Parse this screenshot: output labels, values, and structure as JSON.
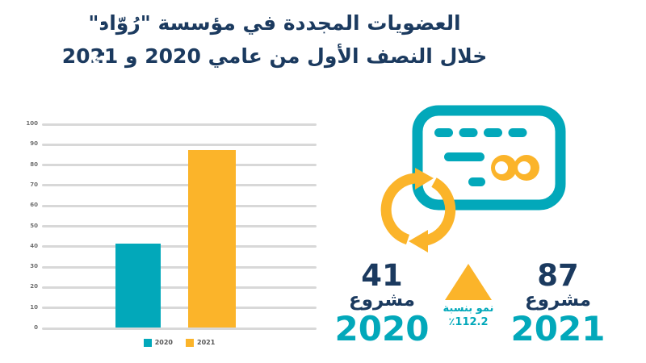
{
  "title": {
    "line1": "العضويات المجددة في مؤسسة \"رُوّاد\"",
    "line2": "خلال النصف الأول من عامي 2020 و 2021",
    "ornament": "ء",
    "color": "#1B3A5F"
  },
  "colors": {
    "teal": "#02A8BA",
    "yellow": "#FBB42A",
    "navy": "#1B3A5F",
    "gridline": "#D8D8D8",
    "tick_label": "#6E6E6E",
    "legend_text": "#575757",
    "background": "#FFFFFF"
  },
  "chart_data": {
    "type": "bar",
    "title": "",
    "xlabel": "",
    "ylabel": "",
    "categories": [
      "2020",
      "2021"
    ],
    "values": [
      41,
      87
    ],
    "series_colors": [
      "#02A8BA",
      "#FBB42A"
    ],
    "ylim": [
      0,
      100
    ],
    "yticks": [
      0,
      10,
      20,
      30,
      40,
      50,
      60,
      70,
      80,
      90,
      100
    ],
    "grid": true,
    "legend": [
      {
        "label": "2020",
        "color": "#02A8BA"
      },
      {
        "label": "2021",
        "color": "#FBB42A"
      }
    ],
    "legend_position": "bottom"
  },
  "stats": {
    "left": {
      "number": "41",
      "unit": "مشروع",
      "year": "2020"
    },
    "growth": {
      "line1": "نمو بنسبة",
      "line2": "٪112.2"
    },
    "right": {
      "number": "87",
      "unit": "مشروع",
      "year": "2021"
    }
  },
  "icons": {
    "card": "credit-card-icon",
    "renew": "renew-cycle-arrows-icon",
    "growth": "growth-triangle-icon"
  }
}
